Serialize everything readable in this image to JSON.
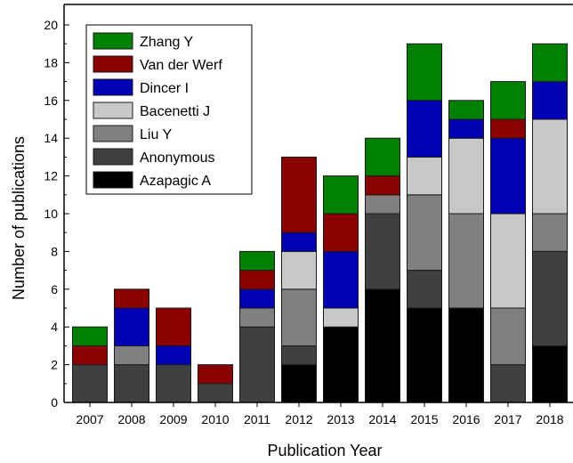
{
  "chart_data": {
    "type": "bar",
    "stacked": true,
    "xlabel": "Publication Year",
    "ylabel": "Number of publications",
    "ylim": [
      0,
      20
    ],
    "yticks": [
      0,
      2,
      4,
      6,
      8,
      10,
      12,
      14,
      16,
      18,
      20
    ],
    "categories": [
      "2007",
      "2008",
      "2009",
      "2010",
      "2011",
      "2012",
      "2013",
      "2014",
      "2015",
      "2016",
      "2017",
      "2018"
    ],
    "legend_position": "top-left",
    "series": [
      {
        "name": "Azapagic A",
        "color": "#000000",
        "values": [
          0,
          0,
          0,
          0,
          0,
          2,
          4,
          6,
          5,
          5,
          0,
          3
        ]
      },
      {
        "name": "Anonymous",
        "color": "#404040",
        "values": [
          2,
          2,
          2,
          1,
          4,
          1,
          0,
          4,
          2,
          0,
          2,
          5
        ]
      },
      {
        "name": "Liu Y",
        "color": "#808080",
        "values": [
          0,
          1,
          0,
          0,
          1,
          3,
          0,
          1,
          4,
          5,
          3,
          2
        ]
      },
      {
        "name": "Bacenetti J",
        "color": "#c8c8c8",
        "values": [
          0,
          0,
          0,
          0,
          0,
          2,
          1,
          0,
          2,
          4,
          5,
          5
        ]
      },
      {
        "name": "Dincer I",
        "color": "#0000b4",
        "values": [
          0,
          2,
          1,
          0,
          1,
          1,
          3,
          0,
          3,
          1,
          4,
          2
        ]
      },
      {
        "name": "Van der Werf",
        "color": "#8b0000",
        "values": [
          1,
          1,
          2,
          1,
          1,
          4,
          2,
          1,
          0,
          0,
          1,
          0
        ]
      },
      {
        "name": "Zhang Y",
        "color": "#008000",
        "values": [
          1,
          0,
          0,
          0,
          1,
          0,
          2,
          2,
          3,
          1,
          2,
          2
        ]
      }
    ]
  }
}
